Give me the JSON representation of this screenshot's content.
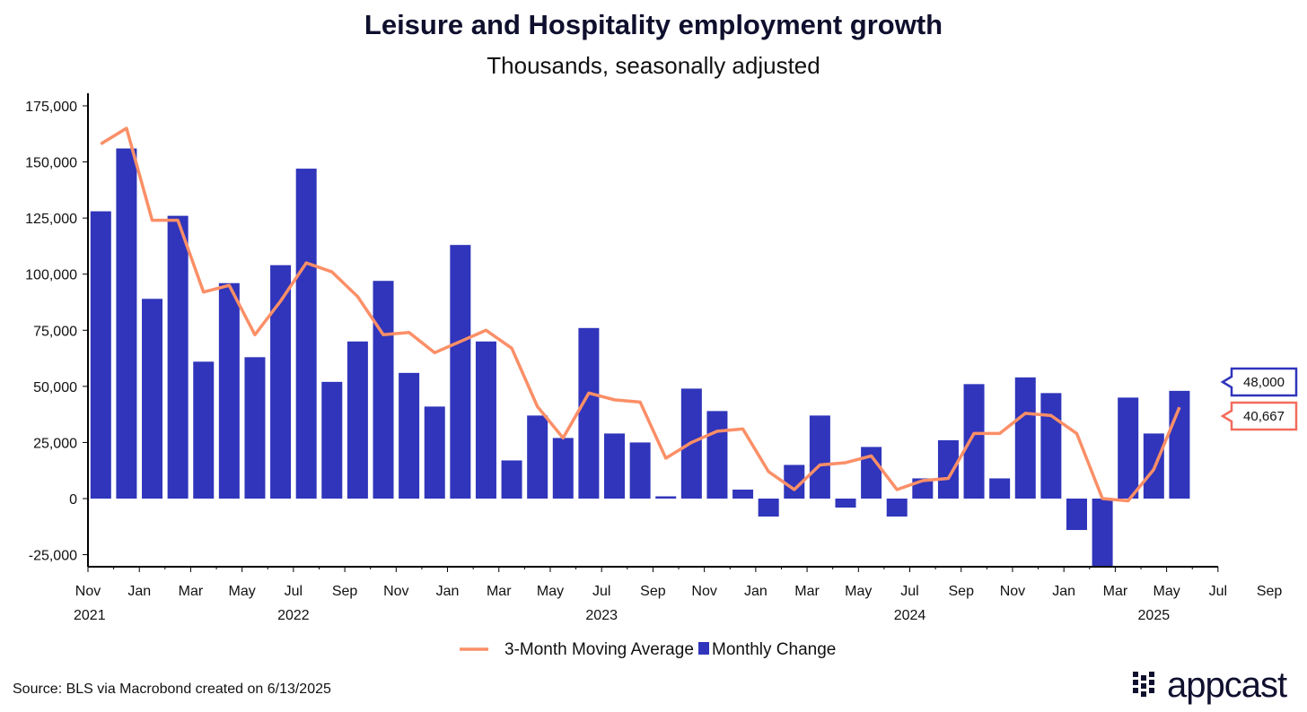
{
  "chart_data": {
    "type": "bar",
    "title": "Leisure and Hospitality employment growth",
    "subtitle": "Thousands, seasonally adjusted",
    "ylim": [
      -30000,
      180000
    ],
    "yticks": [
      175000,
      150000,
      125000,
      100000,
      75000,
      50000,
      25000,
      0,
      -25000
    ],
    "ytick_labels": [
      "175,000",
      "150,000",
      "125,000",
      "100,000",
      "75,000",
      "50,000",
      "25,000",
      "0",
      "-25,000"
    ],
    "xtick_labels": [
      "Nov",
      "Jan",
      "Mar",
      "May",
      "Jul",
      "Sep",
      "Nov",
      "Jan",
      "Mar",
      "May",
      "Jul",
      "Sep",
      "Nov",
      "Jan",
      "Mar",
      "May",
      "Jul",
      "Sep",
      "Nov",
      "Jan",
      "Mar",
      "May",
      "Jul",
      "Sep",
      "Nov",
      "Jan",
      "Mar",
      "May",
      "Jul"
    ],
    "year_labels": [
      {
        "label": "2021",
        "month_index": 0
      },
      {
        "label": "2022",
        "month_index": 8
      },
      {
        "label": "2023",
        "month_index": 20
      },
      {
        "label": "2024",
        "month_index": 32
      },
      {
        "label": "2025",
        "month_index": 44
      }
    ],
    "categories": [
      "Nov 2021",
      "Dec 2021",
      "Jan 2022",
      "Feb 2022",
      "Mar 2022",
      "Apr 2022",
      "May 2022",
      "Jun 2022",
      "Jul 2022",
      "Aug 2022",
      "Sep 2022",
      "Oct 2022",
      "Nov 2022",
      "Dec 2022",
      "Jan 2023",
      "Feb 2023",
      "Mar 2023",
      "Apr 2023",
      "May 2023",
      "Jun 2023",
      "Jul 2023",
      "Aug 2023",
      "Sep 2023",
      "Oct 2023",
      "Nov 2023",
      "Dec 2023",
      "Jan 2024",
      "Feb 2024",
      "Mar 2024",
      "Apr 2024",
      "May 2024",
      "Jun 2024",
      "Jul 2024",
      "Aug 2024",
      "Sep 2024",
      "Oct 2024",
      "Nov 2024",
      "Dec 2024",
      "Jan 2025",
      "Feb 2025",
      "Mar 2025",
      "Apr 2025",
      "May 2025"
    ],
    "series": [
      {
        "name": "Monthly Change",
        "type": "bar",
        "color": "#3035bb",
        "values": [
          128000,
          156000,
          89000,
          126000,
          61000,
          96000,
          63000,
          104000,
          147000,
          52000,
          70000,
          97000,
          56000,
          41000,
          113000,
          70000,
          17000,
          37000,
          27000,
          76000,
          29000,
          25000,
          1000,
          49000,
          39000,
          4000,
          -8000,
          15000,
          37000,
          -4000,
          23000,
          -8000,
          9000,
          26000,
          51000,
          9000,
          54000,
          47000,
          -14000,
          -30000,
          45000,
          29000,
          48000
        ]
      },
      {
        "name": "3-Month Moving Average",
        "type": "line",
        "color": "#fb8f67",
        "values": [
          158000,
          165000,
          124000,
          124000,
          92000,
          95000,
          73000,
          88000,
          105000,
          101000,
          90000,
          73000,
          74000,
          65000,
          70000,
          75000,
          67000,
          41000,
          27000,
          47000,
          44000,
          43000,
          18000,
          25000,
          30000,
          31000,
          12000,
          4000,
          15000,
          16000,
          19000,
          4000,
          8000,
          9000,
          29000,
          29000,
          38000,
          37000,
          29000,
          0,
          -1000,
          13000,
          40667
        ]
      }
    ],
    "end_labels": [
      {
        "text": "48,000",
        "color": "#3035bb"
      },
      {
        "text": "40,667",
        "color": "#f26b5b"
      }
    ],
    "legend": [
      "3-Month Moving Average",
      "Monthly Change"
    ],
    "legend_placement": "bottom-center"
  },
  "source": "Source: BLS via Macrobond created on 6/13/2025",
  "logo": "appcast"
}
